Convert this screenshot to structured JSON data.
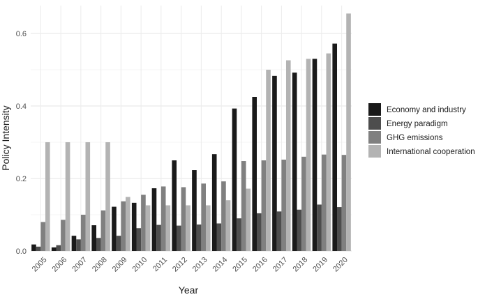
{
  "chart_data": {
    "type": "bar",
    "title": "",
    "xlabel": "Year",
    "ylabel": "Policy Intensity",
    "ylim": [
      0,
      0.66
    ],
    "yticks": [
      0.0,
      0.2,
      0.4,
      0.6
    ],
    "ytick_labels": [
      "0.0",
      "0.2",
      "0.4",
      "0.6"
    ],
    "grid": true,
    "legend_position": "right",
    "categories": [
      "2005",
      "2006",
      "2007",
      "2008",
      "2009",
      "2010",
      "2011",
      "2012",
      "2013",
      "2014",
      "2015",
      "2016",
      "2017",
      "2018",
      "2019",
      "2020"
    ],
    "series": [
      {
        "name": "Economy and industry",
        "color": "#1a1a1a",
        "values": [
          0.018,
          0.01,
          0.042,
          0.071,
          0.122,
          0.133,
          0.173,
          0.25,
          0.223,
          0.267,
          0.393,
          0.425,
          0.483,
          0.492,
          0.53,
          0.572
        ]
      },
      {
        "name": "Energy paradigm",
        "color": "#4d4d4d",
        "values": [
          0.012,
          0.016,
          0.032,
          0.036,
          0.042,
          0.063,
          0.072,
          0.07,
          0.073,
          0.076,
          0.09,
          0.104,
          0.109,
          0.114,
          0.128,
          0.121
        ]
      },
      {
        "name": "GHG emissions",
        "color": "#808080",
        "values": [
          0.08,
          0.086,
          0.1,
          0.112,
          0.137,
          0.155,
          0.178,
          0.176,
          0.186,
          0.192,
          0.248,
          0.25,
          0.252,
          0.26,
          0.266,
          0.265
        ]
      },
      {
        "name": "International cooperation",
        "color": "#b3b3b3",
        "values": [
          0.3,
          0.3,
          0.3,
          0.3,
          0.149,
          0.126,
          0.126,
          0.126,
          0.126,
          0.14,
          0.172,
          0.5,
          0.526,
          0.53,
          0.545,
          0.655
        ]
      }
    ]
  }
}
